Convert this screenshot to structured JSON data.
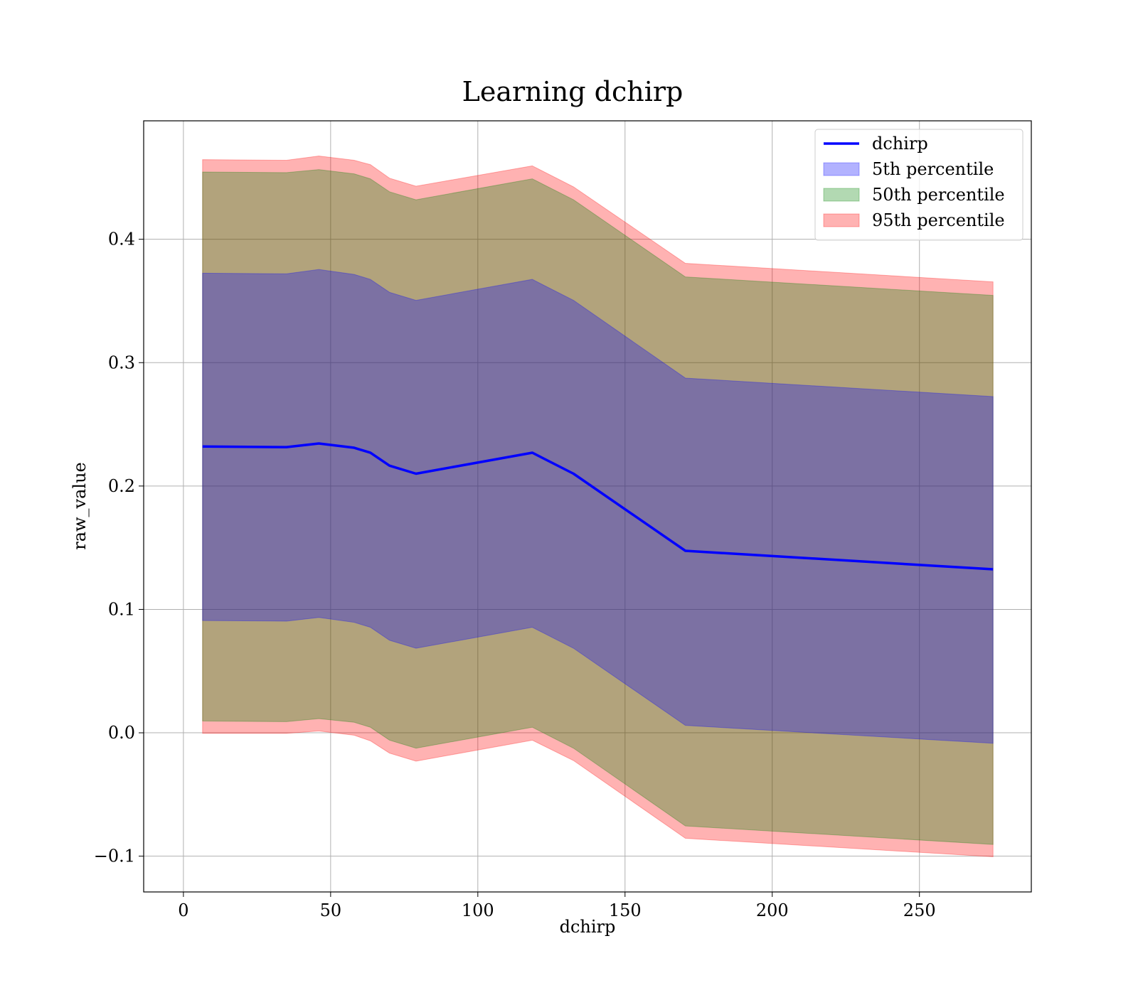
{
  "chart_data": {
    "type": "line",
    "title": "Learning dchirp",
    "xlabel": "dchirp",
    "ylabel": "raw_value",
    "xlim": [
      -13.5,
      288
    ],
    "ylim": [
      -0.129,
      0.496
    ],
    "grid": true,
    "legend_position": "top-right",
    "xticks": [
      {
        "value": 0,
        "label": "0"
      },
      {
        "value": 50,
        "label": "50"
      },
      {
        "value": 100,
        "label": "100"
      },
      {
        "value": 150,
        "label": "150"
      },
      {
        "value": 200,
        "label": "200"
      },
      {
        "value": 250,
        "label": "250"
      }
    ],
    "yticks": [
      {
        "value": -0.1,
        "label": "−0.1"
      },
      {
        "value": 0.0,
        "label": "0.0"
      },
      {
        "value": 0.1,
        "label": "0.1"
      },
      {
        "value": 0.2,
        "label": "0.2"
      },
      {
        "value": 0.3,
        "label": "0.3"
      },
      {
        "value": 0.4,
        "label": "0.4"
      }
    ],
    "x": [
      6.5,
      35,
      46,
      58,
      63.5,
      70,
      79,
      118.5,
      132.5,
      170.5,
      275
    ],
    "line": {
      "name": "dchirp",
      "color": "#0000ff",
      "values": [
        0.232,
        0.2315,
        0.2345,
        0.231,
        0.227,
        0.2165,
        0.21,
        0.227,
        0.21,
        0.1475,
        0.1325
      ]
    },
    "bands": [
      {
        "name": "95th percentile",
        "color": "#ff0000",
        "opacity": 0.3,
        "lower": [
          -0.0005,
          -0.0005,
          0.0015,
          -0.002,
          -0.0065,
          -0.0165,
          -0.023,
          -0.006,
          -0.0225,
          -0.0855,
          -0.1005
        ],
        "upper": [
          0.4645,
          0.464,
          0.4675,
          0.464,
          0.4605,
          0.4495,
          0.443,
          0.4595,
          0.4425,
          0.3805,
          0.3655
        ]
      },
      {
        "name": "50th percentile",
        "color": "#008000",
        "opacity": 0.3,
        "lower": [
          0.0095,
          0.009,
          0.0115,
          0.0085,
          0.0045,
          -0.006,
          -0.0125,
          0.0045,
          -0.0125,
          -0.0755,
          -0.0905
        ],
        "upper": [
          0.4545,
          0.454,
          0.4565,
          0.453,
          0.449,
          0.4385,
          0.432,
          0.449,
          0.432,
          0.3695,
          0.3545
        ]
      },
      {
        "name": "5th percentile",
        "color": "#0000ff",
        "opacity": 0.3,
        "lower": [
          0.091,
          0.0905,
          0.0935,
          0.0895,
          0.0855,
          0.075,
          0.0685,
          0.0855,
          0.0685,
          0.006,
          -0.0085
        ],
        "upper": [
          0.3725,
          0.372,
          0.3755,
          0.3715,
          0.3675,
          0.357,
          0.3505,
          0.3675,
          0.3505,
          0.2875,
          0.2725
        ]
      }
    ],
    "legend": [
      {
        "label": "dchirp",
        "kind": "line",
        "color": "#0000ff"
      },
      {
        "label": "5th percentile",
        "kind": "patch",
        "color": "#0000ff"
      },
      {
        "label": "50th percentile",
        "kind": "patch",
        "color": "#008000"
      },
      {
        "label": "95th percentile",
        "kind": "patch",
        "color": "#ff0000"
      }
    ]
  }
}
